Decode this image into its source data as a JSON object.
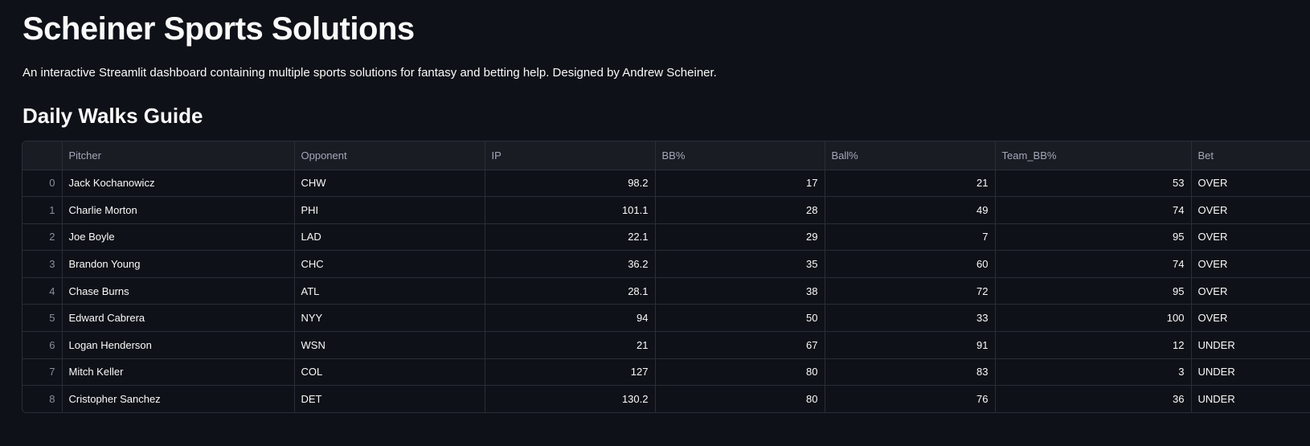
{
  "header": {
    "title": "Scheiner Sports Solutions",
    "subtitle": "An interactive Streamlit dashboard containing multiple sports solutions for fantasy and betting help. Designed by Andrew Scheiner."
  },
  "section": {
    "title": "Daily Walks Guide"
  },
  "table": {
    "columns": [
      "",
      "Pitcher",
      "Opponent",
      "IP",
      "BB%",
      "Ball%",
      "Team_BB%",
      "Bet"
    ],
    "rows": [
      [
        "0",
        "Jack Kochanowicz",
        "CHW",
        "98.2",
        "17",
        "21",
        "53",
        "OVER"
      ],
      [
        "1",
        "Charlie Morton",
        "PHI",
        "101.1",
        "28",
        "49",
        "74",
        "OVER"
      ],
      [
        "2",
        "Joe Boyle",
        "LAD",
        "22.1",
        "29",
        "7",
        "95",
        "OVER"
      ],
      [
        "3",
        "Brandon Young",
        "CHC",
        "36.2",
        "35",
        "60",
        "74",
        "OVER"
      ],
      [
        "4",
        "Chase Burns",
        "ATL",
        "28.1",
        "38",
        "72",
        "95",
        "OVER"
      ],
      [
        "5",
        "Edward Cabrera",
        "NYY",
        "94",
        "50",
        "33",
        "100",
        "OVER"
      ],
      [
        "6",
        "Logan Henderson",
        "WSN",
        "21",
        "67",
        "91",
        "12",
        "UNDER"
      ],
      [
        "7",
        "Mitch Keller",
        "COL",
        "127",
        "80",
        "83",
        "3",
        "UNDER"
      ],
      [
        "8",
        "Cristopher Sanchez",
        "DET",
        "130.2",
        "80",
        "76",
        "36",
        "UNDER"
      ]
    ]
  }
}
